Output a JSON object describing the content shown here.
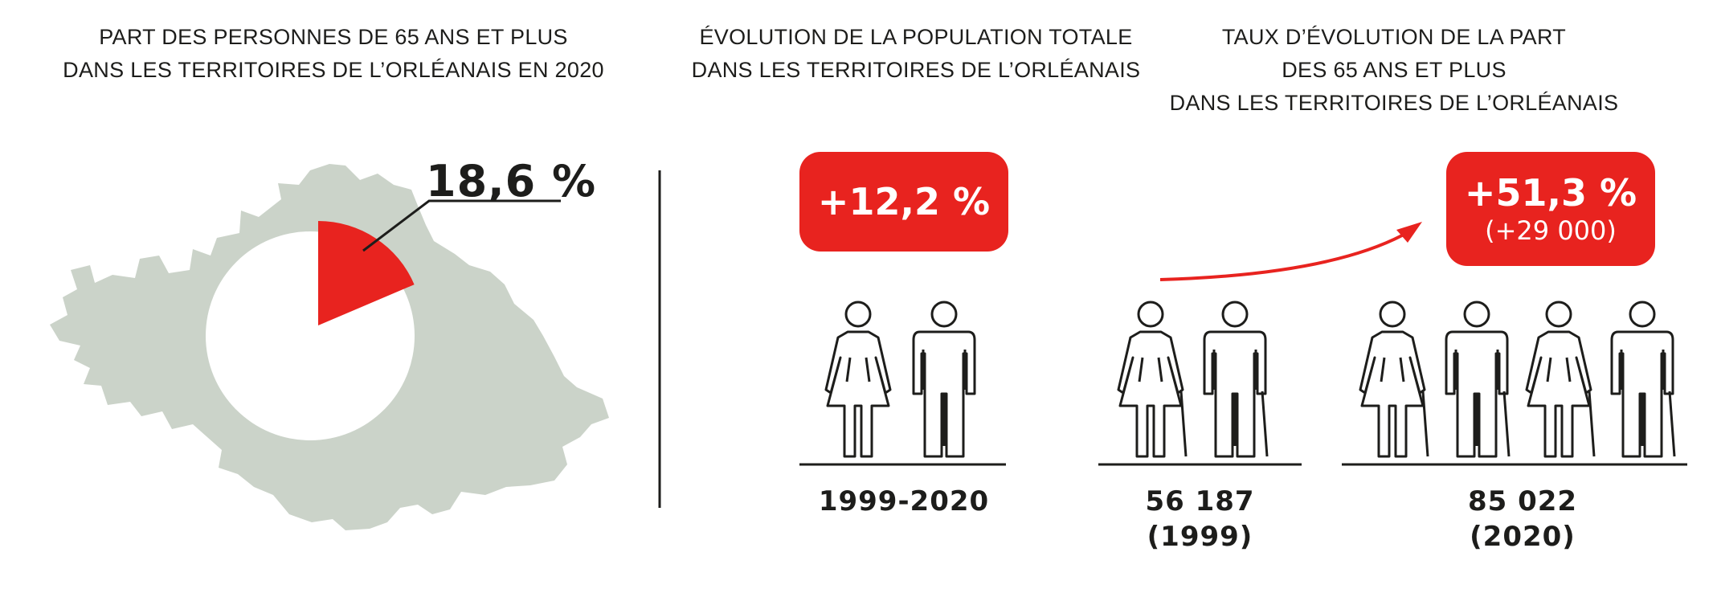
{
  "panels": {
    "share": {
      "heading": [
        "PART DES PERSONNES DE 65 ANS ET PLUS",
        "DANS LES TERRITOIRES DE L’ORLÉANAIS EN 2020"
      ],
      "value": "18,6 %",
      "share_fraction": 0.186
    },
    "population": {
      "heading": [
        "ÉVOLUTION DE LA POPULATION TOTALE",
        "DANS LES TERRITOIRES DE L’ORLÉANAIS"
      ],
      "badge": "+12,2 %",
      "period": "1999-2020"
    },
    "seniors": {
      "heading": [
        "TAUX D’ÉVOLUTION DE LA PART",
        "DES 65 ANS ET PLUS",
        "DANS LES TERRITOIRES DE L’ORLÉANAIS"
      ],
      "badge_main": "+51,3 %",
      "badge_sub": "(+29 000)",
      "before_value": "56 187",
      "before_year": "(1999)",
      "after_value": "85 022",
      "after_year": "(2020)"
    }
  },
  "colors": {
    "accent": "#e8231f",
    "map": "#cbd3c9",
    "ink": "#1d1d1b"
  },
  "icons": [
    "map-silhouette",
    "woman-icon",
    "man-icon",
    "old-woman-with-cane-icon",
    "old-man-with-cane-icon",
    "curved-arrow-icon"
  ]
}
